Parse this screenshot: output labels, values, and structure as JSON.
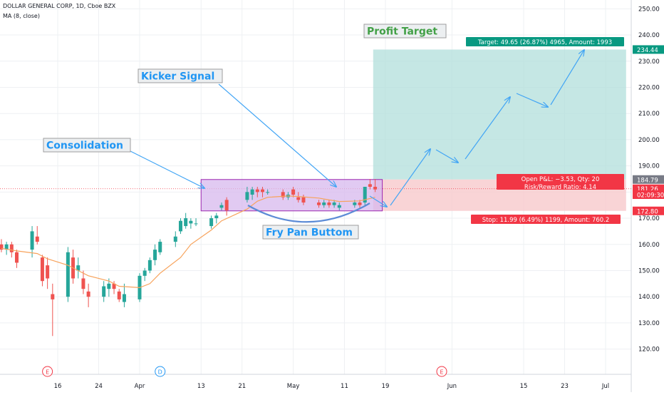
{
  "header": {
    "symbol_line": "DOLLAR GENERAL CORP, 1D, Cboe BZX",
    "indicator_line": "MA (8, close)"
  },
  "annotations": {
    "profit_target": "Profit Target",
    "kicker_signal": "Kicker Signal",
    "consolidation": "Consolidation",
    "fry_pan": "Fry Pan Buttom"
  },
  "position": {
    "target_label": "Target: 49.65 (26.87%) 4965, Amount: 1993",
    "open_pnl": "Open P&L: −3.53, Qty: 20",
    "risk_reward": "Risk/Reward Ratio: 4.14",
    "stop_label": "Stop: 11.99 (6.49%) 1199, Amount: 760.2"
  },
  "price_axis_badges": [
    {
      "text": "234.44",
      "value": 234.44,
      "color": "#089981"
    },
    {
      "text": "184.79",
      "value": 184.79,
      "color": "#787b86"
    },
    {
      "text": "181.26",
      "value": 181.26,
      "color": "#f23645"
    },
    {
      "text": "02:09:30",
      "value": 179.0,
      "color": "#f23645"
    },
    {
      "text": "172.80",
      "value": 172.8,
      "color": "#f23645"
    }
  ],
  "event_markers": [
    {
      "letter": "E",
      "date": "2019-03-14",
      "color": "#f23645"
    },
    {
      "letter": "D",
      "date": "2019-04-05",
      "color": "#2196f3"
    },
    {
      "letter": "E",
      "date": "2019-05-30",
      "color": "#f23645"
    }
  ],
  "colors": {
    "up": "#26a69a",
    "down": "#ef5350",
    "ma": "#f7a35c",
    "arrow": "#42a5f5",
    "profit_zone": "#b2dfdb",
    "stop_zone": "#f8c9cc",
    "consolidation_box": "#d7b8ee",
    "profit_text": "#43a047",
    "annotation_text": "#2196f3"
  },
  "chart_data": {
    "type": "candlestick",
    "title": "DOLLAR GENERAL CORP, 1D, Cboe BZX",
    "ylim": [
      112,
      252
    ],
    "y_ticks": [
      120,
      130,
      140,
      150,
      160,
      170,
      180,
      190,
      200,
      210,
      220,
      230,
      240,
      250
    ],
    "y_tick_labels": [
      "120.00",
      "130.00",
      "140.00",
      "150.00",
      "160.00",
      "170.00",
      "180.00",
      "190.00",
      "200.00",
      "210.00",
      "220.00",
      "230.00",
      "240.00",
      "250.00"
    ],
    "x_ticks": [
      {
        "label": "16",
        "date": "2019-03-16"
      },
      {
        "label": "24",
        "date": "2019-03-24"
      },
      {
        "label": "Apr",
        "date": "2019-04-01"
      },
      {
        "label": "13",
        "date": "2019-04-13"
      },
      {
        "label": "21",
        "date": "2019-04-21"
      },
      {
        "label": "May",
        "date": "2019-05-01"
      },
      {
        "label": "11",
        "date": "2019-05-11"
      },
      {
        "label": "19",
        "date": "2019-05-19"
      },
      {
        "label": "Jun",
        "date": "2019-06-01"
      },
      {
        "label": "15",
        "date": "2019-06-15"
      },
      {
        "label": "23",
        "date": "2019-06-23"
      },
      {
        "label": "Jul",
        "date": "2019-07-01"
      }
    ],
    "grid": true,
    "series": [
      {
        "name": "DOLLAR GENERAL CORP",
        "candles": [
          {
            "date": "2019-03-05",
            "o": 160,
            "h": 162,
            "l": 157,
            "c": 158
          },
          {
            "date": "2019-03-06",
            "o": 158,
            "h": 161,
            "l": 156,
            "c": 160
          },
          {
            "date": "2019-03-07",
            "o": 160,
            "h": 161,
            "l": 155,
            "c": 157
          },
          {
            "date": "2019-03-08",
            "o": 157,
            "h": 158,
            "l": 151,
            "c": 153
          },
          {
            "date": "2019-03-11",
            "o": 158,
            "h": 167,
            "l": 155,
            "c": 165
          },
          {
            "date": "2019-03-12",
            "o": 163,
            "h": 167,
            "l": 160,
            "c": 161
          },
          {
            "date": "2019-03-13",
            "o": 155,
            "h": 156,
            "l": 144,
            "c": 146
          },
          {
            "date": "2019-03-14",
            "o": 152,
            "h": 155,
            "l": 143,
            "c": 147
          },
          {
            "date": "2019-03-15",
            "o": 141,
            "h": 145,
            "l": 125,
            "c": 139
          },
          {
            "date": "2019-03-18",
            "o": 140,
            "h": 159,
            "l": 138,
            "c": 157
          },
          {
            "date": "2019-03-19",
            "o": 155,
            "h": 158,
            "l": 145,
            "c": 147
          },
          {
            "date": "2019-03-20",
            "o": 150,
            "h": 155,
            "l": 147,
            "c": 152
          },
          {
            "date": "2019-03-21",
            "o": 147,
            "h": 150,
            "l": 141,
            "c": 143
          },
          {
            "date": "2019-03-22",
            "o": 142,
            "h": 145,
            "l": 136,
            "c": 140
          },
          {
            "date": "2019-03-25",
            "o": 140,
            "h": 146,
            "l": 138,
            "c": 144
          },
          {
            "date": "2019-03-26",
            "o": 143,
            "h": 147,
            "l": 140,
            "c": 145
          },
          {
            "date": "2019-03-27",
            "o": 145,
            "h": 146,
            "l": 141,
            "c": 143
          },
          {
            "date": "2019-03-28",
            "o": 142,
            "h": 143,
            "l": 138,
            "c": 139
          },
          {
            "date": "2019-03-29",
            "o": 138,
            "h": 145,
            "l": 136,
            "c": 141
          },
          {
            "date": "2019-04-01",
            "o": 139,
            "h": 149,
            "l": 138,
            "c": 148
          },
          {
            "date": "2019-04-02",
            "o": 148,
            "h": 151,
            "l": 146,
            "c": 150
          },
          {
            "date": "2019-04-03",
            "o": 150,
            "h": 155,
            "l": 149,
            "c": 154
          },
          {
            "date": "2019-04-04",
            "o": 154,
            "h": 160,
            "l": 152,
            "c": 158
          },
          {
            "date": "2019-04-05",
            "o": 157,
            "h": 162,
            "l": 156,
            "c": 161
          },
          {
            "date": "2019-04-08",
            "o": 161,
            "h": 165,
            "l": 159,
            "c": 163
          },
          {
            "date": "2019-04-09",
            "o": 165,
            "h": 170,
            "l": 164,
            "c": 169
          },
          {
            "date": "2019-04-10",
            "o": 167,
            "h": 172,
            "l": 166,
            "c": 170
          },
          {
            "date": "2019-04-11",
            "o": 168,
            "h": 170,
            "l": 166,
            "c": 169
          },
          {
            "date": "2019-04-12",
            "o": 168,
            "h": 170,
            "l": 167,
            "c": 168
          },
          {
            "date": "2019-04-15",
            "o": 167,
            "h": 171,
            "l": 166,
            "c": 170
          },
          {
            "date": "2019-04-16",
            "o": 170,
            "h": 172,
            "l": 168,
            "c": 171
          },
          {
            "date": "2019-04-17",
            "o": 174,
            "h": 176,
            "l": 173,
            "c": 175
          },
          {
            "date": "2019-04-18",
            "o": 177,
            "h": 178,
            "l": 171,
            "c": 173
          },
          {
            "date": "2019-04-22",
            "o": 177,
            "h": 182,
            "l": 176,
            "c": 180
          },
          {
            "date": "2019-04-23",
            "o": 179,
            "h": 182,
            "l": 177,
            "c": 181
          },
          {
            "date": "2019-04-24",
            "o": 181,
            "h": 182,
            "l": 178,
            "c": 180
          },
          {
            "date": "2019-04-25",
            "o": 181,
            "h": 182,
            "l": 178,
            "c": 180
          },
          {
            "date": "2019-04-26",
            "o": 180,
            "h": 181,
            "l": 179,
            "c": 180
          },
          {
            "date": "2019-04-29",
            "o": 180,
            "h": 181,
            "l": 177,
            "c": 178
          },
          {
            "date": "2019-04-30",
            "o": 178,
            "h": 180,
            "l": 177,
            "c": 179
          },
          {
            "date": "2019-05-01",
            "o": 181,
            "h": 182,
            "l": 178,
            "c": 179
          },
          {
            "date": "2019-05-02",
            "o": 178,
            "h": 180,
            "l": 176,
            "c": 177
          },
          {
            "date": "2019-05-03",
            "o": 178,
            "h": 179,
            "l": 175,
            "c": 176
          },
          {
            "date": "2019-05-06",
            "o": 176,
            "h": 177,
            "l": 174,
            "c": 175
          },
          {
            "date": "2019-05-07",
            "o": 175,
            "h": 177,
            "l": 174,
            "c": 176
          },
          {
            "date": "2019-05-08",
            "o": 176,
            "h": 177,
            "l": 174,
            "c": 175
          },
          {
            "date": "2019-05-09",
            "o": 175,
            "h": 177,
            "l": 174,
            "c": 176
          },
          {
            "date": "2019-05-10",
            "o": 174,
            "h": 176,
            "l": 173,
            "c": 175
          },
          {
            "date": "2019-05-13",
            "o": 175,
            "h": 177,
            "l": 174,
            "c": 176
          },
          {
            "date": "2019-05-14",
            "o": 176,
            "h": 177,
            "l": 174,
            "c": 175
          },
          {
            "date": "2019-05-15",
            "o": 176,
            "h": 182,
            "l": 175,
            "c": 182
          },
          {
            "date": "2019-05-16",
            "o": 183,
            "h": 185,
            "l": 181,
            "c": 182
          },
          {
            "date": "2019-05-17",
            "o": 182,
            "h": 185,
            "l": 180,
            "c": 181
          }
        ]
      },
      {
        "name": "MA (8, close)",
        "points": [
          {
            "date": "2019-03-05",
            "v": 158.5
          },
          {
            "date": "2019-03-08",
            "v": 157.5
          },
          {
            "date": "2019-03-12",
            "v": 156.5
          },
          {
            "date": "2019-03-14",
            "v": 154.5
          },
          {
            "date": "2019-03-18",
            "v": 152.0
          },
          {
            "date": "2019-03-20",
            "v": 150.0
          },
          {
            "date": "2019-03-22",
            "v": 148.0
          },
          {
            "date": "2019-03-26",
            "v": 146.0
          },
          {
            "date": "2019-03-28",
            "v": 144.0
          },
          {
            "date": "2019-04-01",
            "v": 143.5
          },
          {
            "date": "2019-04-03",
            "v": 145.0
          },
          {
            "date": "2019-04-05",
            "v": 149.0
          },
          {
            "date": "2019-04-09",
            "v": 155.0
          },
          {
            "date": "2019-04-11",
            "v": 160.0
          },
          {
            "date": "2019-04-15",
            "v": 165.5
          },
          {
            "date": "2019-04-17",
            "v": 169.0
          },
          {
            "date": "2019-04-22",
            "v": 173.5
          },
          {
            "date": "2019-04-24",
            "v": 176.5
          },
          {
            "date": "2019-04-26",
            "v": 178.0
          },
          {
            "date": "2019-04-30",
            "v": 178.5
          },
          {
            "date": "2019-05-02",
            "v": 178.3
          },
          {
            "date": "2019-05-06",
            "v": 177.7
          },
          {
            "date": "2019-05-08",
            "v": 177.0
          },
          {
            "date": "2019-05-10",
            "v": 176.4
          },
          {
            "date": "2019-05-14",
            "v": 176.6
          },
          {
            "date": "2019-05-17",
            "v": 178.0
          }
        ]
      }
    ],
    "trade_setup": {
      "entry": 184.79,
      "target": 234.44,
      "stop": 172.8,
      "start_date": "2019-05-18",
      "end_date": "2019-06-30"
    },
    "consolidation_zone": {
      "start_date": "2019-04-13",
      "end_date": "2019-05-17",
      "low": 172.8,
      "high": 184.79
    }
  }
}
